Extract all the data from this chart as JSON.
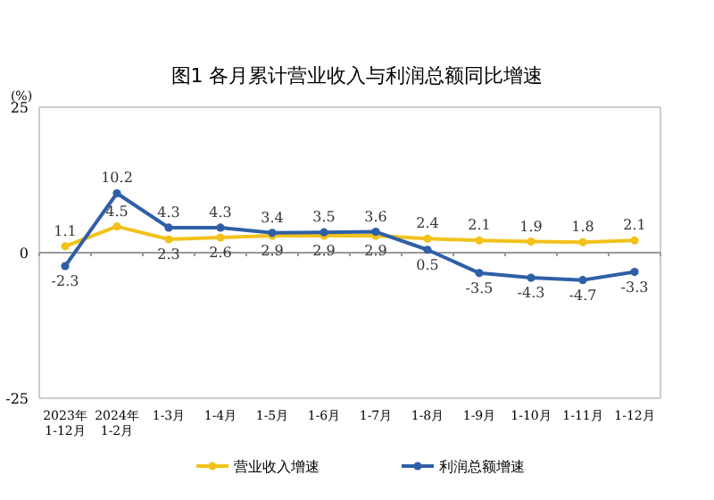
{
  "chart_data": {
    "type": "line",
    "title": "图1  各月累计营业收入与利润总额同比增速",
    "ylabel": "(%)",
    "categories": [
      "2023年\n1-12月",
      "2024年\n1-2月",
      "1-3月",
      "1-4月",
      "1-5月",
      "1-6月",
      "1-7月",
      "1-8月",
      "1-9月",
      "1-10月",
      "1-11月",
      "1-12月"
    ],
    "series": [
      {
        "name": "营业收入增速",
        "color": "#f2c21b",
        "values": [
          1.1,
          4.5,
          2.3,
          2.6,
          2.9,
          2.9,
          2.9,
          2.4,
          2.1,
          1.9,
          1.8,
          2.1
        ]
      },
      {
        "name": "利润总额增速",
        "color": "#2f5fa6",
        "values": [
          -2.3,
          10.2,
          4.3,
          4.3,
          3.4,
          3.5,
          3.6,
          0.5,
          -3.5,
          -4.3,
          -4.7,
          -3.3
        ]
      }
    ],
    "ylim": [
      -25,
      25
    ],
    "yticks": [
      -25,
      0,
      25
    ],
    "data_labels": true,
    "legend": "bottom",
    "marker": "circle",
    "grid": "y"
  }
}
